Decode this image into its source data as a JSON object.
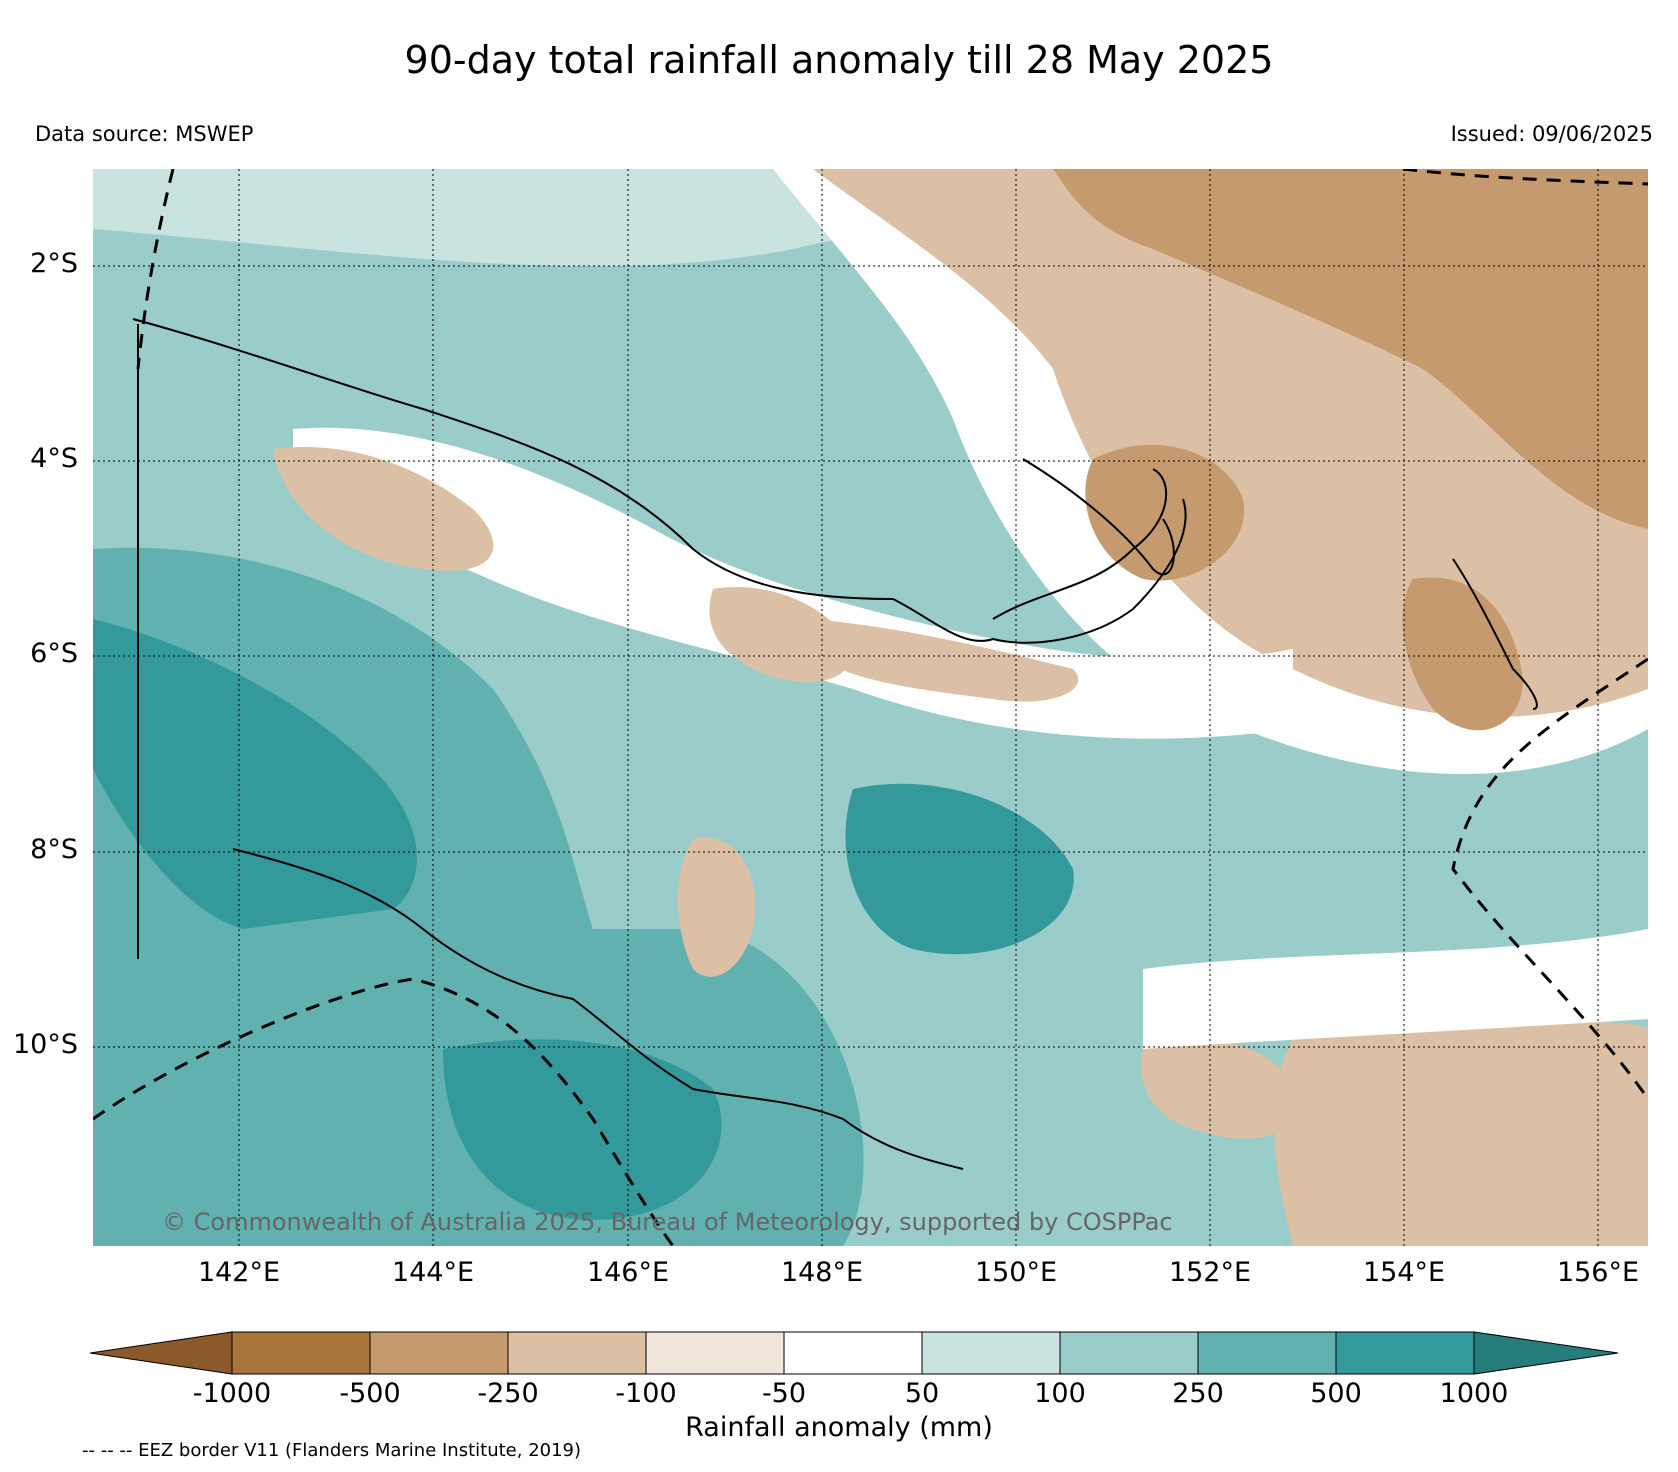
{
  "title": "90-day total rainfall anomaly till 28 May 2025",
  "data_source": "Data source: MSWEP",
  "issued": "Issued: 09/06/2025",
  "lat_labels": [
    "2°S",
    "4°S",
    "6°S",
    "8°S",
    "10°S"
  ],
  "lon_labels": [
    "142°E",
    "144°E",
    "146°E",
    "148°E",
    "150°E",
    "152°E",
    "154°E",
    "156°E"
  ],
  "copyright": "© Commonwealth of Australia 2025, Bureau of Meteorology, supported by COSPPac",
  "colorbar": {
    "ticks": [
      "-1000",
      "-500",
      "-250",
      "-100",
      "-50",
      "50",
      "100",
      "250",
      "500",
      "1000"
    ],
    "colors": [
      "#8c5a2a",
      "#a8753d",
      "#c49a6e",
      "#dcc0a6",
      "#f1e6dc",
      "#ffffff",
      "#c9e3e1",
      "#9accca",
      "#62b1b1",
      "#33999a",
      "#267b7b"
    ],
    "label": "Rainfall anomaly (mm)"
  },
  "eez_note": "-- -- -- EEZ border V11 (Flanders Marine Institute, 2019)"
}
